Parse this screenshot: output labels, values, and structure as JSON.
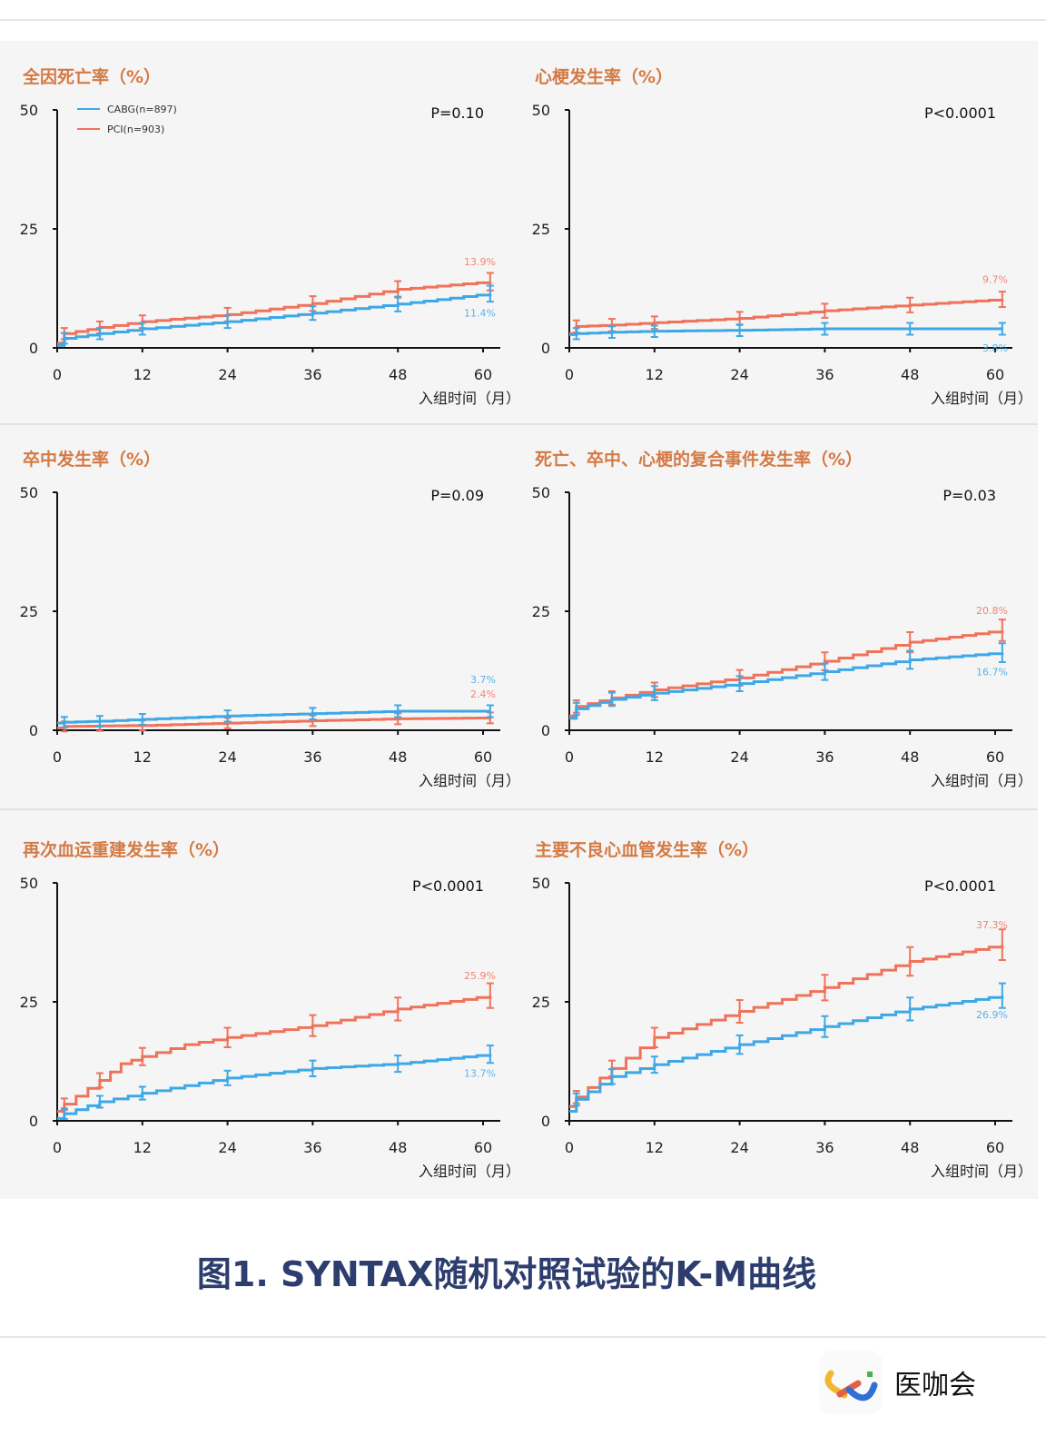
{
  "colors": {
    "cabg": "#3ea8e6",
    "pci": "#ef735b",
    "title": "#d47a45",
    "panel_bg": "#f5f5f5"
  },
  "legend": {
    "cabg": "CABG(n=897)",
    "pci": "PCI(n=903)"
  },
  "figure_title": "图1. SYNTAX随机对照试验的K-M曲线",
  "logo": {
    "text": "医咖会"
  },
  "chart_data": [
    {
      "type": "line",
      "title": "全因死亡率（%）",
      "p_value": "P=0.10",
      "xlabel": "入组时间（月）",
      "xticks": [
        0,
        12,
        24,
        36,
        48,
        60
      ],
      "yticks": [
        0,
        25,
        50
      ],
      "xlim": [
        0,
        62
      ],
      "ylim": [
        0,
        50
      ],
      "series": [
        {
          "name": "PCI",
          "end_label": "13.9%",
          "points": [
            [
              0,
              1
            ],
            [
              1,
              3
            ],
            [
              6,
              4.3
            ],
            [
              12,
              5.5
            ],
            [
              24,
              7
            ],
            [
              36,
              9.3
            ],
            [
              48,
              12.3
            ],
            [
              61,
              13.9
            ]
          ]
        },
        {
          "name": "CABG",
          "end_label": "11.4%",
          "points": [
            [
              0,
              0.5
            ],
            [
              1,
              2
            ],
            [
              6,
              3
            ],
            [
              12,
              4
            ],
            [
              24,
              5.5
            ],
            [
              36,
              7.3
            ],
            [
              48,
              9.2
            ],
            [
              61,
              11.4
            ]
          ]
        }
      ]
    },
    {
      "type": "line",
      "title": "心梗发生率（%）",
      "p_value": "P<0.0001",
      "xlabel": "入组时间（月）",
      "xticks": [
        0,
        12,
        24,
        36,
        48,
        60
      ],
      "yticks": [
        0,
        25,
        50
      ],
      "xlim": [
        0,
        62
      ],
      "ylim": [
        0,
        50
      ],
      "series": [
        {
          "name": "PCI",
          "end_label": "9.7%",
          "points": [
            [
              0,
              3
            ],
            [
              1,
              4.5
            ],
            [
              6,
              4.8
            ],
            [
              12,
              5.3
            ],
            [
              24,
              6.2
            ],
            [
              36,
              7.8
            ],
            [
              48,
              9
            ],
            [
              61,
              10.2
            ]
          ]
        },
        {
          "name": "CABG",
          "end_label": "3.8%",
          "points": [
            [
              0,
              2.8
            ],
            [
              1,
              3
            ],
            [
              6,
              3.3
            ],
            [
              12,
              3.5
            ],
            [
              24,
              3.7
            ],
            [
              36,
              4
            ],
            [
              48,
              4
            ],
            [
              61,
              4
            ]
          ]
        }
      ]
    },
    {
      "type": "line",
      "title": "卒中发生率（%）",
      "p_value": "P=0.09",
      "xlabel": "入组时间（月）",
      "xticks": [
        0,
        12,
        24,
        36,
        48,
        60
      ],
      "yticks": [
        0,
        25,
        50
      ],
      "xlim": [
        0,
        62
      ],
      "ylim": [
        0,
        50
      ],
      "series": [
        {
          "name": "PCI",
          "end_label": "2.4%",
          "points": [
            [
              0,
              0.5
            ],
            [
              1,
              0.8
            ],
            [
              6,
              0.9
            ],
            [
              12,
              1
            ],
            [
              24,
              1.5
            ],
            [
              36,
              2
            ],
            [
              48,
              2.4
            ],
            [
              61,
              2.6
            ]
          ]
        },
        {
          "name": "CABG",
          "end_label": "3.7%",
          "points": [
            [
              0,
              1.5
            ],
            [
              1,
              1.7
            ],
            [
              6,
              1.9
            ],
            [
              12,
              2.3
            ],
            [
              24,
              3
            ],
            [
              36,
              3.5
            ],
            [
              48,
              4
            ],
            [
              61,
              4
            ]
          ]
        }
      ]
    },
    {
      "type": "line",
      "title": "死亡、卒中、心梗的复合事件发生率（%）",
      "p_value": "P=0.03",
      "xlabel": "入组时间（月）",
      "xticks": [
        0,
        12,
        24,
        36,
        48,
        60
      ],
      "yticks": [
        0,
        25,
        50
      ],
      "xlim": [
        0,
        62
      ],
      "ylim": [
        0,
        50
      ],
      "series": [
        {
          "name": "PCI",
          "end_label": "20.8%",
          "points": [
            [
              0,
              3
            ],
            [
              1,
              5
            ],
            [
              6,
              6.8
            ],
            [
              12,
              8.5
            ],
            [
              24,
              11
            ],
            [
              36,
              14.5
            ],
            [
              48,
              18.5
            ],
            [
              61,
              21
            ]
          ]
        },
        {
          "name": "CABG",
          "end_label": "16.7%",
          "points": [
            [
              0,
              2.5
            ],
            [
              1,
              4.5
            ],
            [
              6,
              6.5
            ],
            [
              12,
              7.8
            ],
            [
              24,
              9.8
            ],
            [
              36,
              12.3
            ],
            [
              48,
              14.8
            ],
            [
              61,
              16.3
            ]
          ]
        }
      ]
    },
    {
      "type": "line",
      "title": "再次血运重建发生率（%）",
      "p_value": "P<0.0001",
      "xlabel": "入组时间（月）",
      "xticks": [
        0,
        12,
        24,
        36,
        48,
        60
      ],
      "yticks": [
        0,
        25,
        50
      ],
      "xlim": [
        0,
        62
      ],
      "ylim": [
        0,
        50
      ],
      "series": [
        {
          "name": "PCI",
          "end_label": "25.9%",
          "points": [
            [
              0,
              2
            ],
            [
              1,
              3.5
            ],
            [
              6,
              8.5
            ],
            [
              9,
              12
            ],
            [
              12,
              13.5
            ],
            [
              18,
              16
            ],
            [
              24,
              17.5
            ],
            [
              36,
              20
            ],
            [
              48,
              23.5
            ],
            [
              61,
              26.3
            ]
          ]
        },
        {
          "name": "CABG",
          "end_label": "13.7%",
          "points": [
            [
              0,
              0.5
            ],
            [
              1,
              1.5
            ],
            [
              6,
              4
            ],
            [
              12,
              5.8
            ],
            [
              24,
              9
            ],
            [
              36,
              11
            ],
            [
              48,
              12
            ],
            [
              61,
              14
            ]
          ]
        }
      ]
    },
    {
      "type": "line",
      "title": "主要不良心血管发生率（%）",
      "p_value": "P<0.0001",
      "xlabel": "入组时间（月）",
      "xticks": [
        0,
        12,
        24,
        36,
        48,
        60
      ],
      "yticks": [
        0,
        25,
        50
      ],
      "xlim": [
        0,
        62
      ],
      "ylim": [
        0,
        50
      ],
      "series": [
        {
          "name": "PCI",
          "end_label": "37.3%",
          "points": [
            [
              0,
              3
            ],
            [
              1,
              5
            ],
            [
              6,
              11
            ],
            [
              12,
              17.5
            ],
            [
              24,
              23
            ],
            [
              36,
              28
            ],
            [
              48,
              33.5
            ],
            [
              61,
              37
            ]
          ]
        },
        {
          "name": "CABG",
          "end_label": "26.9%",
          "points": [
            [
              0,
              2
            ],
            [
              1,
              4.5
            ],
            [
              6,
              9.3
            ],
            [
              12,
              11.8
            ],
            [
              24,
              16
            ],
            [
              36,
              19.8
            ],
            [
              48,
              23.5
            ],
            [
              61,
              26.3
            ]
          ]
        }
      ]
    }
  ]
}
